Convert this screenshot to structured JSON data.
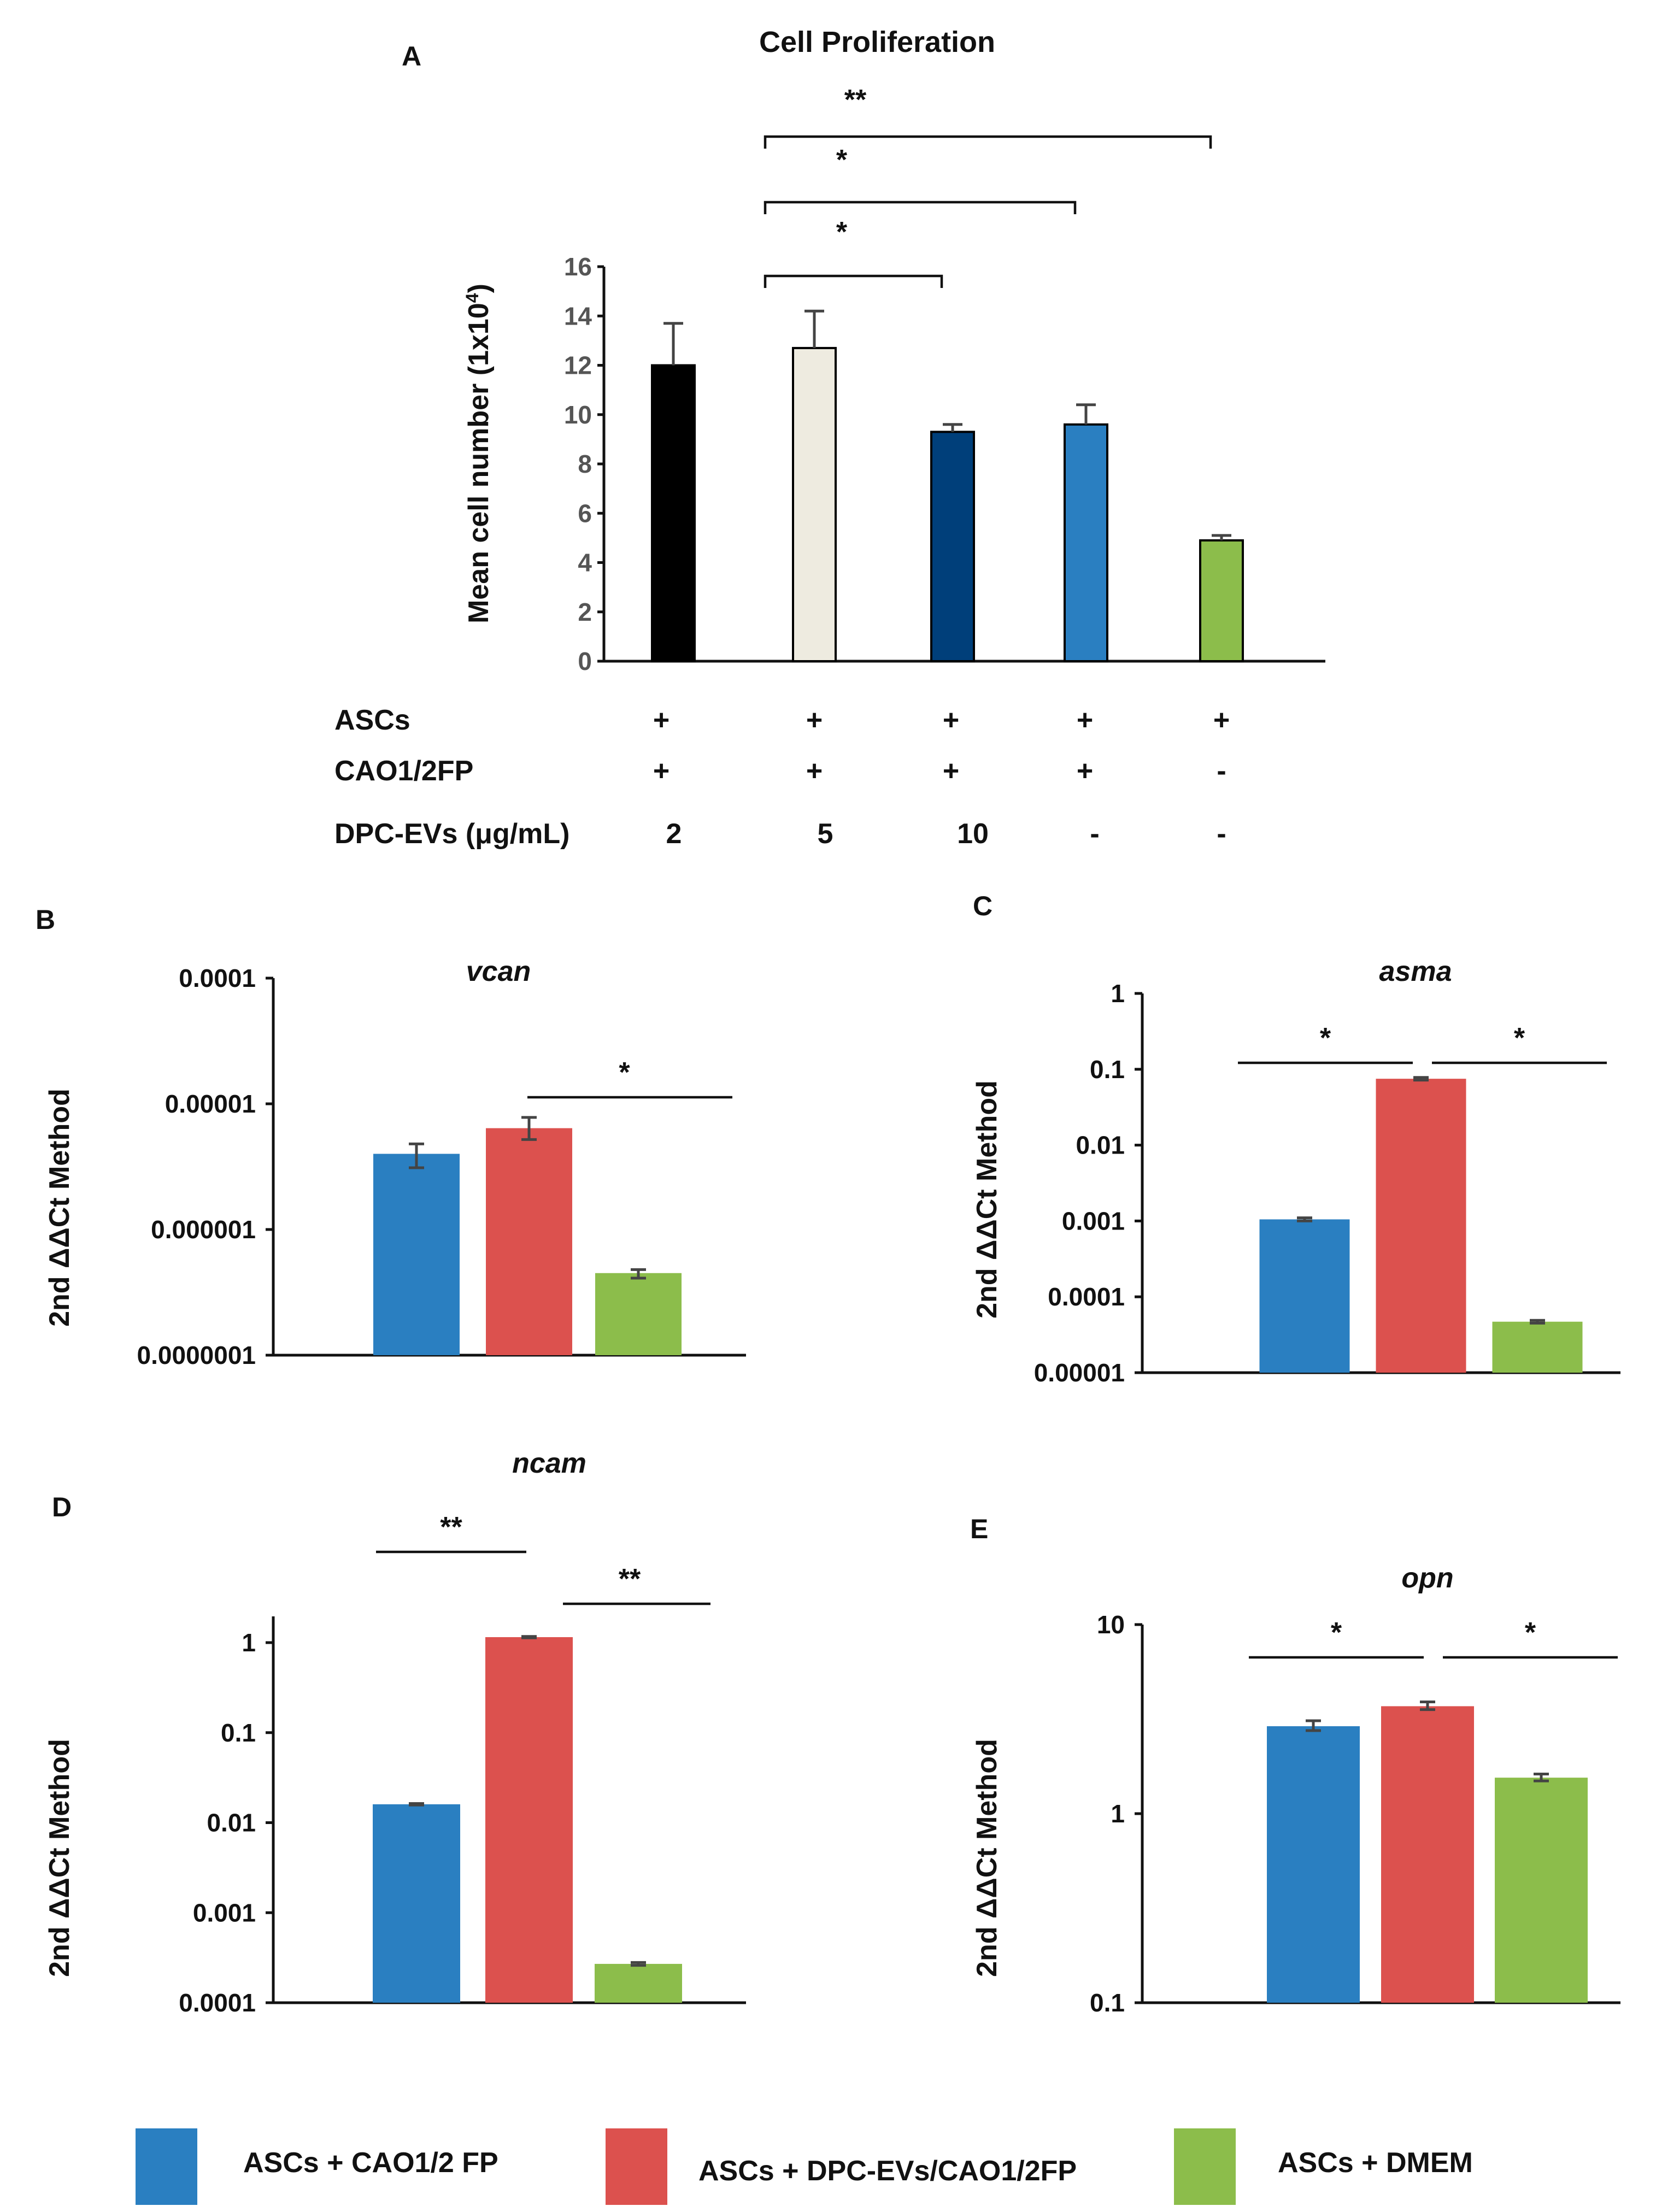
{
  "chart_data": [
    {
      "id": "A",
      "panel": "A",
      "type": "bar",
      "title": "Cell Proliferation",
      "ylabel": "Mean cell number (1x10",
      "ylabel_sup": "4",
      "ylabel_end": ")",
      "ylim": [
        0,
        16
      ],
      "yticks": [
        "0",
        "2",
        "4",
        "6",
        "8",
        "10",
        "12",
        "14",
        "16"
      ],
      "values": [
        12.0,
        12.7,
        9.3,
        9.6,
        4.9
      ],
      "errors": [
        1.7,
        1.5,
        0.3,
        0.8,
        0.2
      ],
      "colors": [
        "#000000",
        "#eeebe0",
        "#003f7a",
        "#2a7fc1",
        "#8cbd4b"
      ],
      "rows": [
        {
          "label": "ASCs",
          "values": [
            "+",
            "+",
            "+",
            "+",
            "+"
          ]
        },
        {
          "label": "CAO1/2FP",
          "values": [
            "+",
            "+",
            "+",
            "+",
            "-"
          ]
        },
        {
          "label": "DPC-EVs (μg/mL)",
          "values": [
            "2",
            "5",
            "10",
            "-",
            "-"
          ]
        }
      ],
      "significance": [
        {
          "from": 1,
          "to": 4,
          "label": "**"
        },
        {
          "from": 1,
          "to": 3,
          "label": "*"
        },
        {
          "from": 1,
          "to": 2,
          "label": "*"
        }
      ],
      "grid": false
    },
    {
      "id": "B",
      "panel": "B",
      "type": "bar",
      "title": "vcan",
      "ylabel": "2nd ΔΔCt Method",
      "yscale": "log",
      "ylim": [
        1e-07,
        0.0001
      ],
      "yticks": [
        "0.0000001",
        "0.000001",
        "0.00001",
        "0.0001"
      ],
      "values": [
        4e-06,
        6.4e-06,
        4.5e-07
      ],
      "errors": [
        [
          3.1e-06,
          4.8e-06
        ],
        [
          5.2e-06,
          7.8e-06
        ],
        [
          4.1e-07,
          4.8e-07
        ]
      ],
      "significance": [
        {
          "from": 1,
          "to": 2,
          "label": "*"
        }
      ],
      "grid": false
    },
    {
      "id": "C",
      "panel": "C",
      "type": "bar",
      "title": "asma",
      "ylabel": "2nd ΔΔCt Method",
      "yscale": "log",
      "ylim": [
        1e-05,
        1
      ],
      "yticks": [
        "0.00001",
        "0.0001",
        "0.001",
        "0.01",
        "0.1",
        "1"
      ],
      "values": [
        0.00105,
        0.075,
        4.7e-05
      ],
      "errors": [
        [
          0.001,
          0.0011
        ],
        [
          0.072,
          0.078
        ],
        [
          4.5e-05,
          4.9e-05
        ]
      ],
      "significance": [
        {
          "from": 0,
          "to": 1,
          "label": "*"
        },
        {
          "from": 1,
          "to": 2,
          "label": "*"
        }
      ],
      "grid": false
    },
    {
      "id": "D",
      "panel": "D",
      "type": "bar",
      "title": "ncam",
      "ylabel": "2nd ΔΔCt Method",
      "yscale": "log",
      "ylim": [
        0.0001,
        2
      ],
      "yticks": [
        "0.0001",
        "0.001",
        "0.01",
        "0.1",
        "1"
      ],
      "values": [
        0.016,
        1.15,
        0.00027
      ],
      "errors": [
        [
          0.0157,
          0.0163
        ],
        [
          1.13,
          1.17
        ],
        [
          0.00026,
          0.00028
        ]
      ],
      "significance": [
        {
          "from": 0,
          "to": 1,
          "label": "**"
        },
        {
          "from": 1,
          "to": 2,
          "label": "**"
        }
      ],
      "grid": false
    },
    {
      "id": "E",
      "panel": "E",
      "type": "bar",
      "title": "opn",
      "ylabel": "2nd ΔΔCt Method",
      "yscale": "log",
      "ylim": [
        0.1,
        10
      ],
      "yticks": [
        "0.1",
        "1",
        "10"
      ],
      "values": [
        2.9,
        3.7,
        1.55
      ],
      "errors": [
        [
          2.75,
          3.1
        ],
        [
          3.55,
          3.9
        ],
        [
          1.49,
          1.62
        ]
      ],
      "significance": [
        {
          "from": 0,
          "to": 1,
          "label": "*"
        },
        {
          "from": 1,
          "to": 2,
          "label": "*"
        }
      ],
      "grid": false
    }
  ],
  "legend": [
    {
      "label": "ASCs + CAO1/2 FP",
      "color": "#2a7fc1"
    },
    {
      "label": "ASCs + DPC-EVs/CAO1/2FP",
      "color": "#dc514e"
    },
    {
      "label": "ASCs + DMEM",
      "color": "#8cbd4b"
    }
  ],
  "legend_placement": "bottom"
}
